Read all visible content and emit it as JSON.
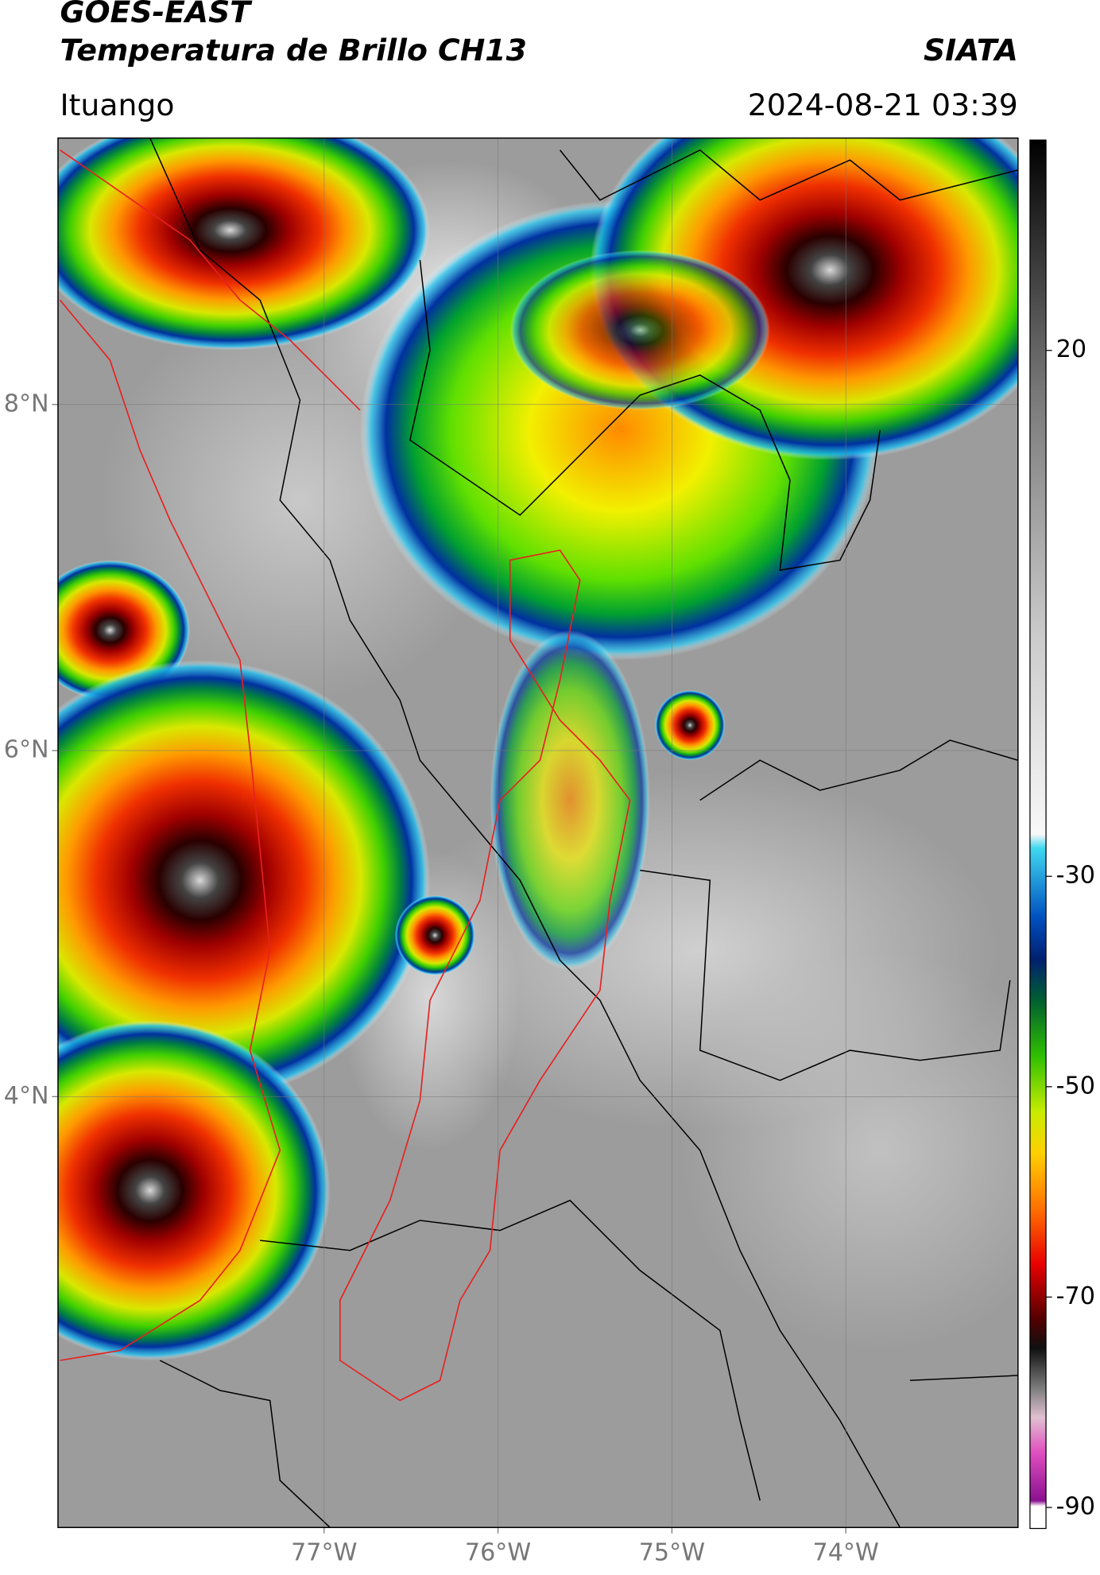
{
  "header": {
    "title": "GOES-EAST",
    "subtitle": "Temperatura de Brillo CH13",
    "brand": "SIATA",
    "location": "Ituango",
    "datetime": "2024-08-21 03:39"
  },
  "map": {
    "xlim": [
      -78.53,
      -73.01
    ],
    "ylim": [
      1.51,
      9.54
    ],
    "xticks": [
      {
        "value": -77,
        "label": "77°W"
      },
      {
        "value": -76,
        "label": "76°W"
      },
      {
        "value": -75,
        "label": "75°W"
      },
      {
        "value": -74,
        "label": "74°W"
      }
    ],
    "yticks": [
      {
        "value": 8,
        "label": "8°N"
      },
      {
        "value": 6,
        "label": "6°N"
      },
      {
        "value": 4,
        "label": "4°N"
      }
    ],
    "grid": true
  },
  "colorbar": {
    "clim": [
      -92,
      40
    ],
    "ticks": [
      20,
      -30,
      -50,
      -70,
      -90
    ]
  }
}
